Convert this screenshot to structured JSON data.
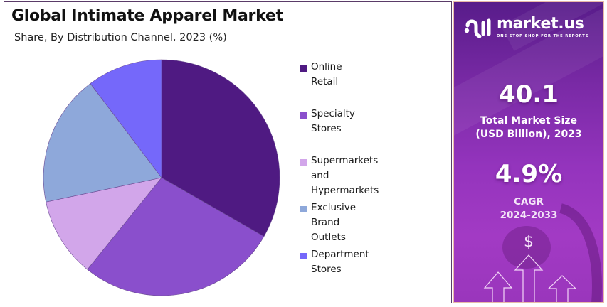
{
  "header": {
    "title": "Global Intimate Apparel Market",
    "subtitle": "Share, By Distribution Channel, 2023 (%)"
  },
  "legend": [
    {
      "label": "Online Retail",
      "color": "#4f1a82"
    },
    {
      "label": "Specialty Stores",
      "color": "#8a4fcc"
    },
    {
      "label": "Supermarkets and",
      "label2": "Hypermarkets",
      "color": "#d2a6ea"
    },
    {
      "label": "Exclusive Brand Outlets",
      "color": "#8ea8da"
    },
    {
      "label": "Department Stores",
      "color": "#7568fa"
    }
  ],
  "brand": {
    "name": "market.us",
    "tagline": "ONE STOP SHOP FOR THE REPORTS"
  },
  "stats": {
    "market_size_value": "40.1",
    "market_size_label_1": "Total Market Size",
    "market_size_label_2": "(USD Billion), 2023",
    "cagr_value": "4.9%",
    "cagr_label_1": "CAGR",
    "cagr_label_2": "2024-2033",
    "currency_symbol": "$"
  },
  "chart_data": {
    "type": "pie",
    "title": "Global Intimate Apparel Market",
    "subtitle": "Share, By Distribution Channel, 2023 (%)",
    "categories": [
      "Online Retail",
      "Specialty Stores",
      "Supermarkets and Hypermarkets",
      "Exclusive Brand Outlets",
      "Department Stores"
    ],
    "values": [
      33.3,
      27.5,
      10.9,
      18.0,
      10.3
    ],
    "colors": [
      "#4f1a82",
      "#8a4fcc",
      "#d2a6ea",
      "#8ea8da",
      "#7568fa"
    ],
    "start_angle": "12 o'clock, clockwise",
    "data_labels": false,
    "legend_position": "right",
    "unit": "%"
  }
}
